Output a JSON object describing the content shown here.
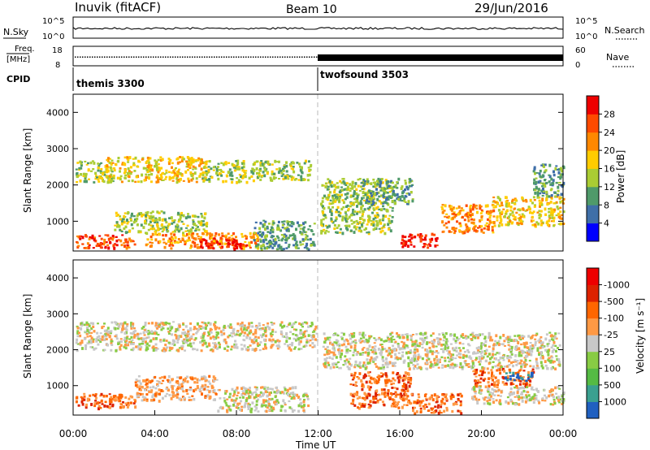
{
  "header": {
    "radar": "Inuvik (fitACF)",
    "beam": "Beam 10",
    "date": "29/Jun/2016"
  },
  "panels": {
    "nsky": {
      "label": "N.Sky",
      "ticks": [
        "10^5",
        "10^0"
      ]
    },
    "nsearch": {
      "label": "N.Search",
      "ticks": [
        "10^5",
        "10^0"
      ]
    },
    "freq": {
      "label_top": "Freq.",
      "label_bottom": "[MHz]",
      "ticks": [
        "18",
        "8"
      ]
    },
    "nave": {
      "label": "Nave",
      "ticks": [
        "60",
        "0"
      ]
    },
    "cpid": {
      "label": "CPID",
      "modes": [
        "themis 3300",
        "twofsound 3503"
      ]
    }
  },
  "x_axis": {
    "label": "Time UT",
    "ticks": [
      "00:00",
      "04:00",
      "08:00",
      "12:00",
      "16:00",
      "20:00",
      "00:00"
    ]
  },
  "chart_data": [
    {
      "type": "heatmap",
      "title": "Power",
      "ylabel": "Slant Range [km]",
      "ytick_labels": [
        "1000",
        "2000",
        "3000",
        "4000"
      ],
      "ylim": [
        180,
        4500
      ],
      "x_unit": "hours UT",
      "xlim": [
        0,
        24
      ],
      "colorbar": {
        "label": "Power [dB]",
        "ticks": [
          "4",
          "8",
          "12",
          "16",
          "20",
          "24",
          "28"
        ],
        "colors": [
          "#0000ff",
          "#3f6fa8",
          "#4f9a6a",
          "#aacc33",
          "#ffcc00",
          "#ff8800",
          "#ff4a00",
          "#ee0000"
        ]
      },
      "regions": [
        {
          "x": [
            0.1,
            2.0
          ],
          "y": [
            2100,
            2700
          ],
          "level": 3
        },
        {
          "x": [
            1.6,
            6.5
          ],
          "y": [
            2100,
            2800
          ],
          "level": 4
        },
        {
          "x": [
            6.3,
            8.5
          ],
          "y": [
            2100,
            2700
          ],
          "level": 3
        },
        {
          "x": [
            8.5,
            11.6
          ],
          "y": [
            2150,
            2700
          ],
          "level": 3
        },
        {
          "x": [
            0.1,
            3.0
          ],
          "y": [
            280,
            650
          ],
          "level": 6
        },
        {
          "x": [
            2.0,
            6.5
          ],
          "y": [
            700,
            1300
          ],
          "level": 3
        },
        {
          "x": [
            3.5,
            9.0
          ],
          "y": [
            280,
            700
          ],
          "level": 5
        },
        {
          "x": [
            6.2,
            8.5
          ],
          "y": [
            250,
            560
          ],
          "level": 7
        },
        {
          "x": [
            8.8,
            11.8
          ],
          "y": [
            250,
            1050
          ],
          "level": 2
        },
        {
          "x": [
            12.1,
            15.6
          ],
          "y": [
            700,
            2200
          ],
          "level": 3
        },
        {
          "x": [
            14.0,
            16.6
          ],
          "y": [
            1500,
            2200
          ],
          "level": 2
        },
        {
          "x": [
            16.0,
            17.8
          ],
          "y": [
            300,
            700
          ],
          "level": 7
        },
        {
          "x": [
            18.0,
            20.6
          ],
          "y": [
            700,
            1500
          ],
          "level": 5
        },
        {
          "x": [
            20.5,
            24.0
          ],
          "y": [
            900,
            1700
          ],
          "level": 4
        },
        {
          "x": [
            22.5,
            24.0
          ],
          "y": [
            1700,
            2600
          ],
          "level": 2
        }
      ]
    },
    {
      "type": "heatmap",
      "title": "Velocity",
      "ylabel": "Slant Range [km]",
      "ytick_labels": [
        "1000",
        "2000",
        "3000",
        "4000"
      ],
      "ylim": [
        180,
        4500
      ],
      "x_unit": "hours UT",
      "xlim": [
        0,
        24
      ],
      "colorbar": {
        "label": "Velocity [m s⁻¹]",
        "ticks": [
          "1000",
          "500",
          "100",
          "25",
          "-25",
          "-100",
          "-500",
          "-1000"
        ],
        "colors": [
          "#2060c0",
          "#3aa090",
          "#55bb44",
          "#88cc44",
          "#c8c8c8",
          "#ff9944",
          "#ff6600",
          "#dd2200",
          "#ee0000"
        ]
      },
      "regions": [
        {
          "x": [
            0.1,
            11.9
          ],
          "y": [
            2000,
            2800
          ],
          "level": 4
        },
        {
          "x": [
            12.2,
            23.8
          ],
          "y": [
            1500,
            2500
          ],
          "level": 4
        },
        {
          "x": [
            0.1,
            3.0
          ],
          "y": [
            400,
            800
          ],
          "level": 6
        },
        {
          "x": [
            3.0,
            7.0
          ],
          "y": [
            600,
            1300
          ],
          "level": 5
        },
        {
          "x": [
            7.0,
            11.5
          ],
          "y": [
            300,
            1000
          ],
          "level": 4
        },
        {
          "x": [
            13.5,
            16.5
          ],
          "y": [
            400,
            1400
          ],
          "level": 6
        },
        {
          "x": [
            16.5,
            19.0
          ],
          "y": [
            250,
            800
          ],
          "level": 6
        },
        {
          "x": [
            19.5,
            22.5
          ],
          "y": [
            1000,
            1500
          ],
          "level": 6
        },
        {
          "x": [
            21.0,
            22.5
          ],
          "y": [
            1150,
            1400
          ],
          "level": 0
        },
        {
          "x": [
            19.5,
            24.0
          ],
          "y": [
            500,
            1000
          ],
          "level": 4
        }
      ]
    }
  ]
}
